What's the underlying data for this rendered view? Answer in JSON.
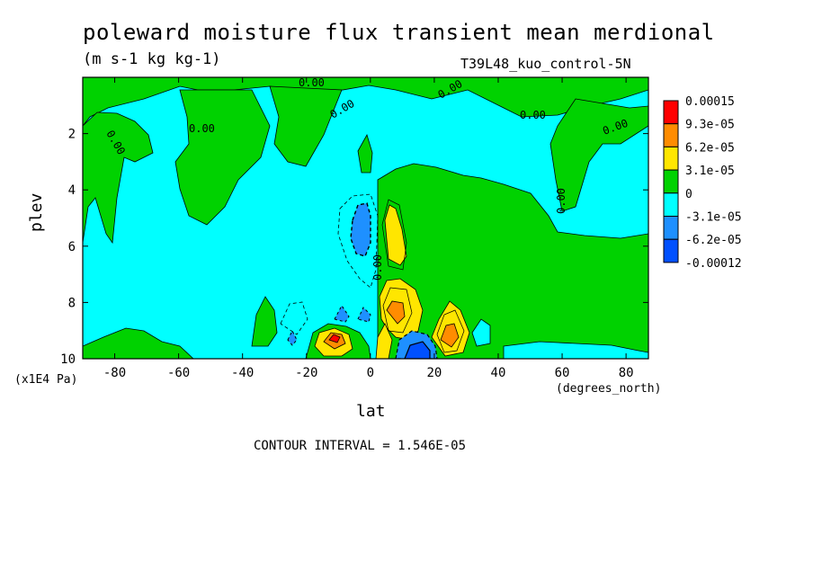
{
  "title": "poleward moisture flux transient mean merdional",
  "units": "(m s-1 kg kg-1)",
  "experiment": "T39L48_kuo_control-5N",
  "x_unit": "(degrees_north)",
  "y_unit": "(x1E4 Pa)",
  "contour_interval_text": "CONTOUR INTERVAL = 1.546E-05",
  "contour_zero_label": "0.00",
  "colors": {
    "red": "#ff0000",
    "dark_orange": "#ff8c00",
    "yellow": "#ffe600",
    "green": "#00d200",
    "cyan": "#00ffff",
    "mid_blue": "#1e90ff",
    "blue": "#0050ff"
  },
  "chart_data": {
    "type": "heatmap",
    "title": "poleward moisture flux transient mean merdional",
    "xlabel": "lat",
    "ylabel": "plev",
    "xlim": [
      -90,
      87
    ],
    "ylim": [
      10,
      0
    ],
    "xticks": [
      -80,
      -60,
      -40,
      -20,
      0,
      20,
      40,
      60,
      80
    ],
    "yticks": [
      2,
      4,
      6,
      8,
      10
    ],
    "legend": {
      "placement": "right",
      "labels": [
        "0.00015",
        "9.3e-05",
        "6.2e-05",
        "3.1e-05",
        "0",
        "-3.1e-05",
        "-6.2e-05",
        "-0.00012"
      ],
      "colors": [
        "#ff0000",
        "#ff8c00",
        "#ffe600",
        "#00d200",
        "#00ffff",
        "#1e90ff",
        "#0050ff"
      ]
    },
    "regions": [
      {
        "level": "0 to 3.1e-05",
        "desc": "upper stratosphere band",
        "lat": [
          -90,
          87
        ],
        "plev": [
          0.0,
          1.0
        ]
      },
      {
        "level": "0 to 3.1e-05",
        "desc": "equatorial to north pole lower troposphere",
        "lat": [
          5,
          87
        ],
        "plev": [
          4.0,
          10.0
        ]
      },
      {
        "level": "-3.1e-05 to -6.2e-05",
        "desc": "equatorial upper minimum",
        "lat": [
          -3,
          3
        ],
        "plev": [
          4.5,
          6.5
        ]
      },
      {
        "level": "3.1e-05 to 6.2e-05",
        "desc": "north of equator max",
        "lat": [
          6,
          12
        ],
        "plev": [
          4.7,
          7.0
        ]
      },
      {
        "level": "6.2e-05 to 9.3e-05",
        "desc": "lower tropospheric max near 8N",
        "lat": [
          6,
          14
        ],
        "plev": [
          7.5,
          9.3
        ]
      },
      {
        "level": "9.3e-05 to 0.00015",
        "desc": "near-surface max near 10S",
        "lat": [
          -14,
          -8
        ],
        "plev": [
          8.9,
          9.5
        ]
      },
      {
        "level": "6.2e-05 to 9.3e-05",
        "desc": "near-surface max near 25N",
        "lat": [
          22,
          30
        ],
        "plev": [
          8.7,
          9.8
        ]
      },
      {
        "level": "-6.2e-05 to -0.00012",
        "desc": "near-surface minimum near 15N",
        "lat": [
          10,
          22
        ],
        "plev": [
          9.0,
          10.0
        ]
      }
    ]
  }
}
